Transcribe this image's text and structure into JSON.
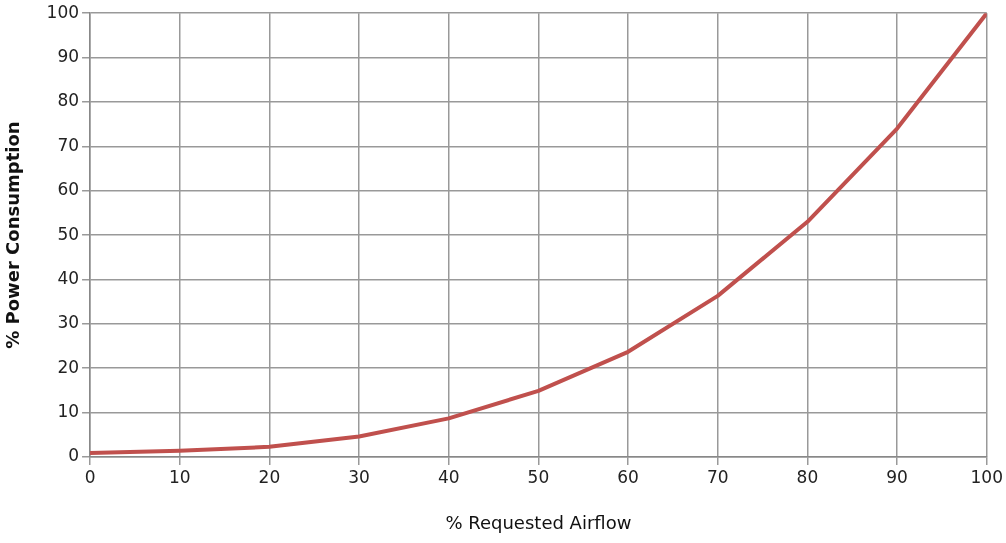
{
  "chart_data": {
    "type": "line",
    "xlabel": "% Requested Airflow",
    "ylabel": "% Power Consumption",
    "x": [
      0,
      10,
      20,
      30,
      40,
      50,
      60,
      70,
      80,
      90,
      100
    ],
    "series": [
      {
        "color": "#c0504d",
        "values": [
          0.9,
          1.4,
          2.3,
          4.6,
          8.7,
          14.9,
          23.7,
          36.3,
          53,
          74,
          100
        ]
      }
    ],
    "xlim": [
      0,
      100
    ],
    "xticks": [
      0,
      10,
      20,
      30,
      40,
      50,
      60,
      70,
      80,
      90,
      100
    ],
    "ylim": [
      0,
      100
    ],
    "yticks": [
      0,
      10,
      20,
      30,
      40,
      50,
      60,
      70,
      80,
      90,
      100
    ],
    "grid": true,
    "legend": false,
    "marker": "none",
    "line_style": "solid"
  }
}
